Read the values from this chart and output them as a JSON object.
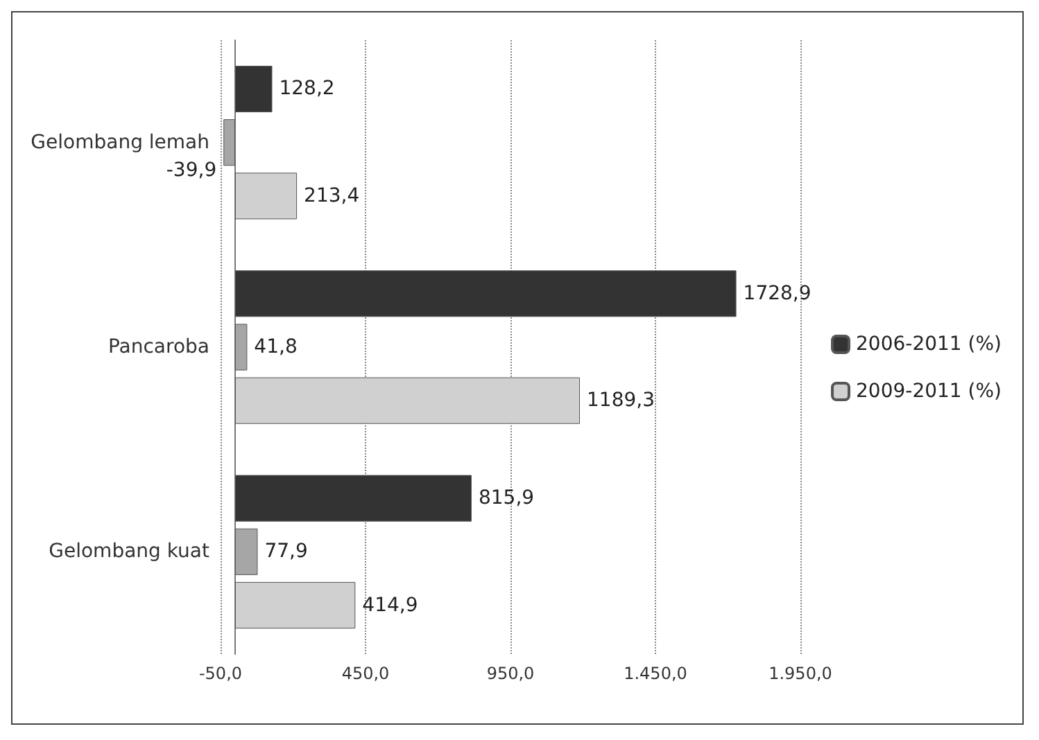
{
  "chart_data": {
    "type": "bar",
    "orientation": "horizontal",
    "categories": [
      "Gelombang lemah",
      "Pancaroba",
      "Gelombang kuat"
    ],
    "series": [
      {
        "name": "2006-2011 (%)",
        "color": "#333333",
        "values": [
          128.2,
          1728.9,
          815.9
        ],
        "value_labels": [
          "128,2",
          "1728,9",
          "815,9"
        ]
      },
      {
        "color": "#a6a6a6",
        "values": [
          -39.9,
          41.8,
          77.9
        ],
        "value_labels": [
          "-39,9",
          "41,8",
          "77,9"
        ]
      },
      {
        "name": "2009-2011 (%)",
        "color": "#d0d0d0",
        "values": [
          213.4,
          1189.3,
          414.9
        ],
        "value_labels": [
          "213,4",
          "1189,3",
          "414,9"
        ]
      }
    ],
    "xlim": [
      -50,
      1950
    ],
    "xticks": [
      {
        "value": -50,
        "label": "-50,0"
      },
      {
        "value": 450,
        "label": "450,0"
      },
      {
        "value": 950,
        "label": "950,0"
      },
      {
        "value": 1450,
        "label": "1.450,0"
      },
      {
        "value": 1950,
        "label": "1.950,0"
      }
    ],
    "grid": "x",
    "legend": "right"
  }
}
